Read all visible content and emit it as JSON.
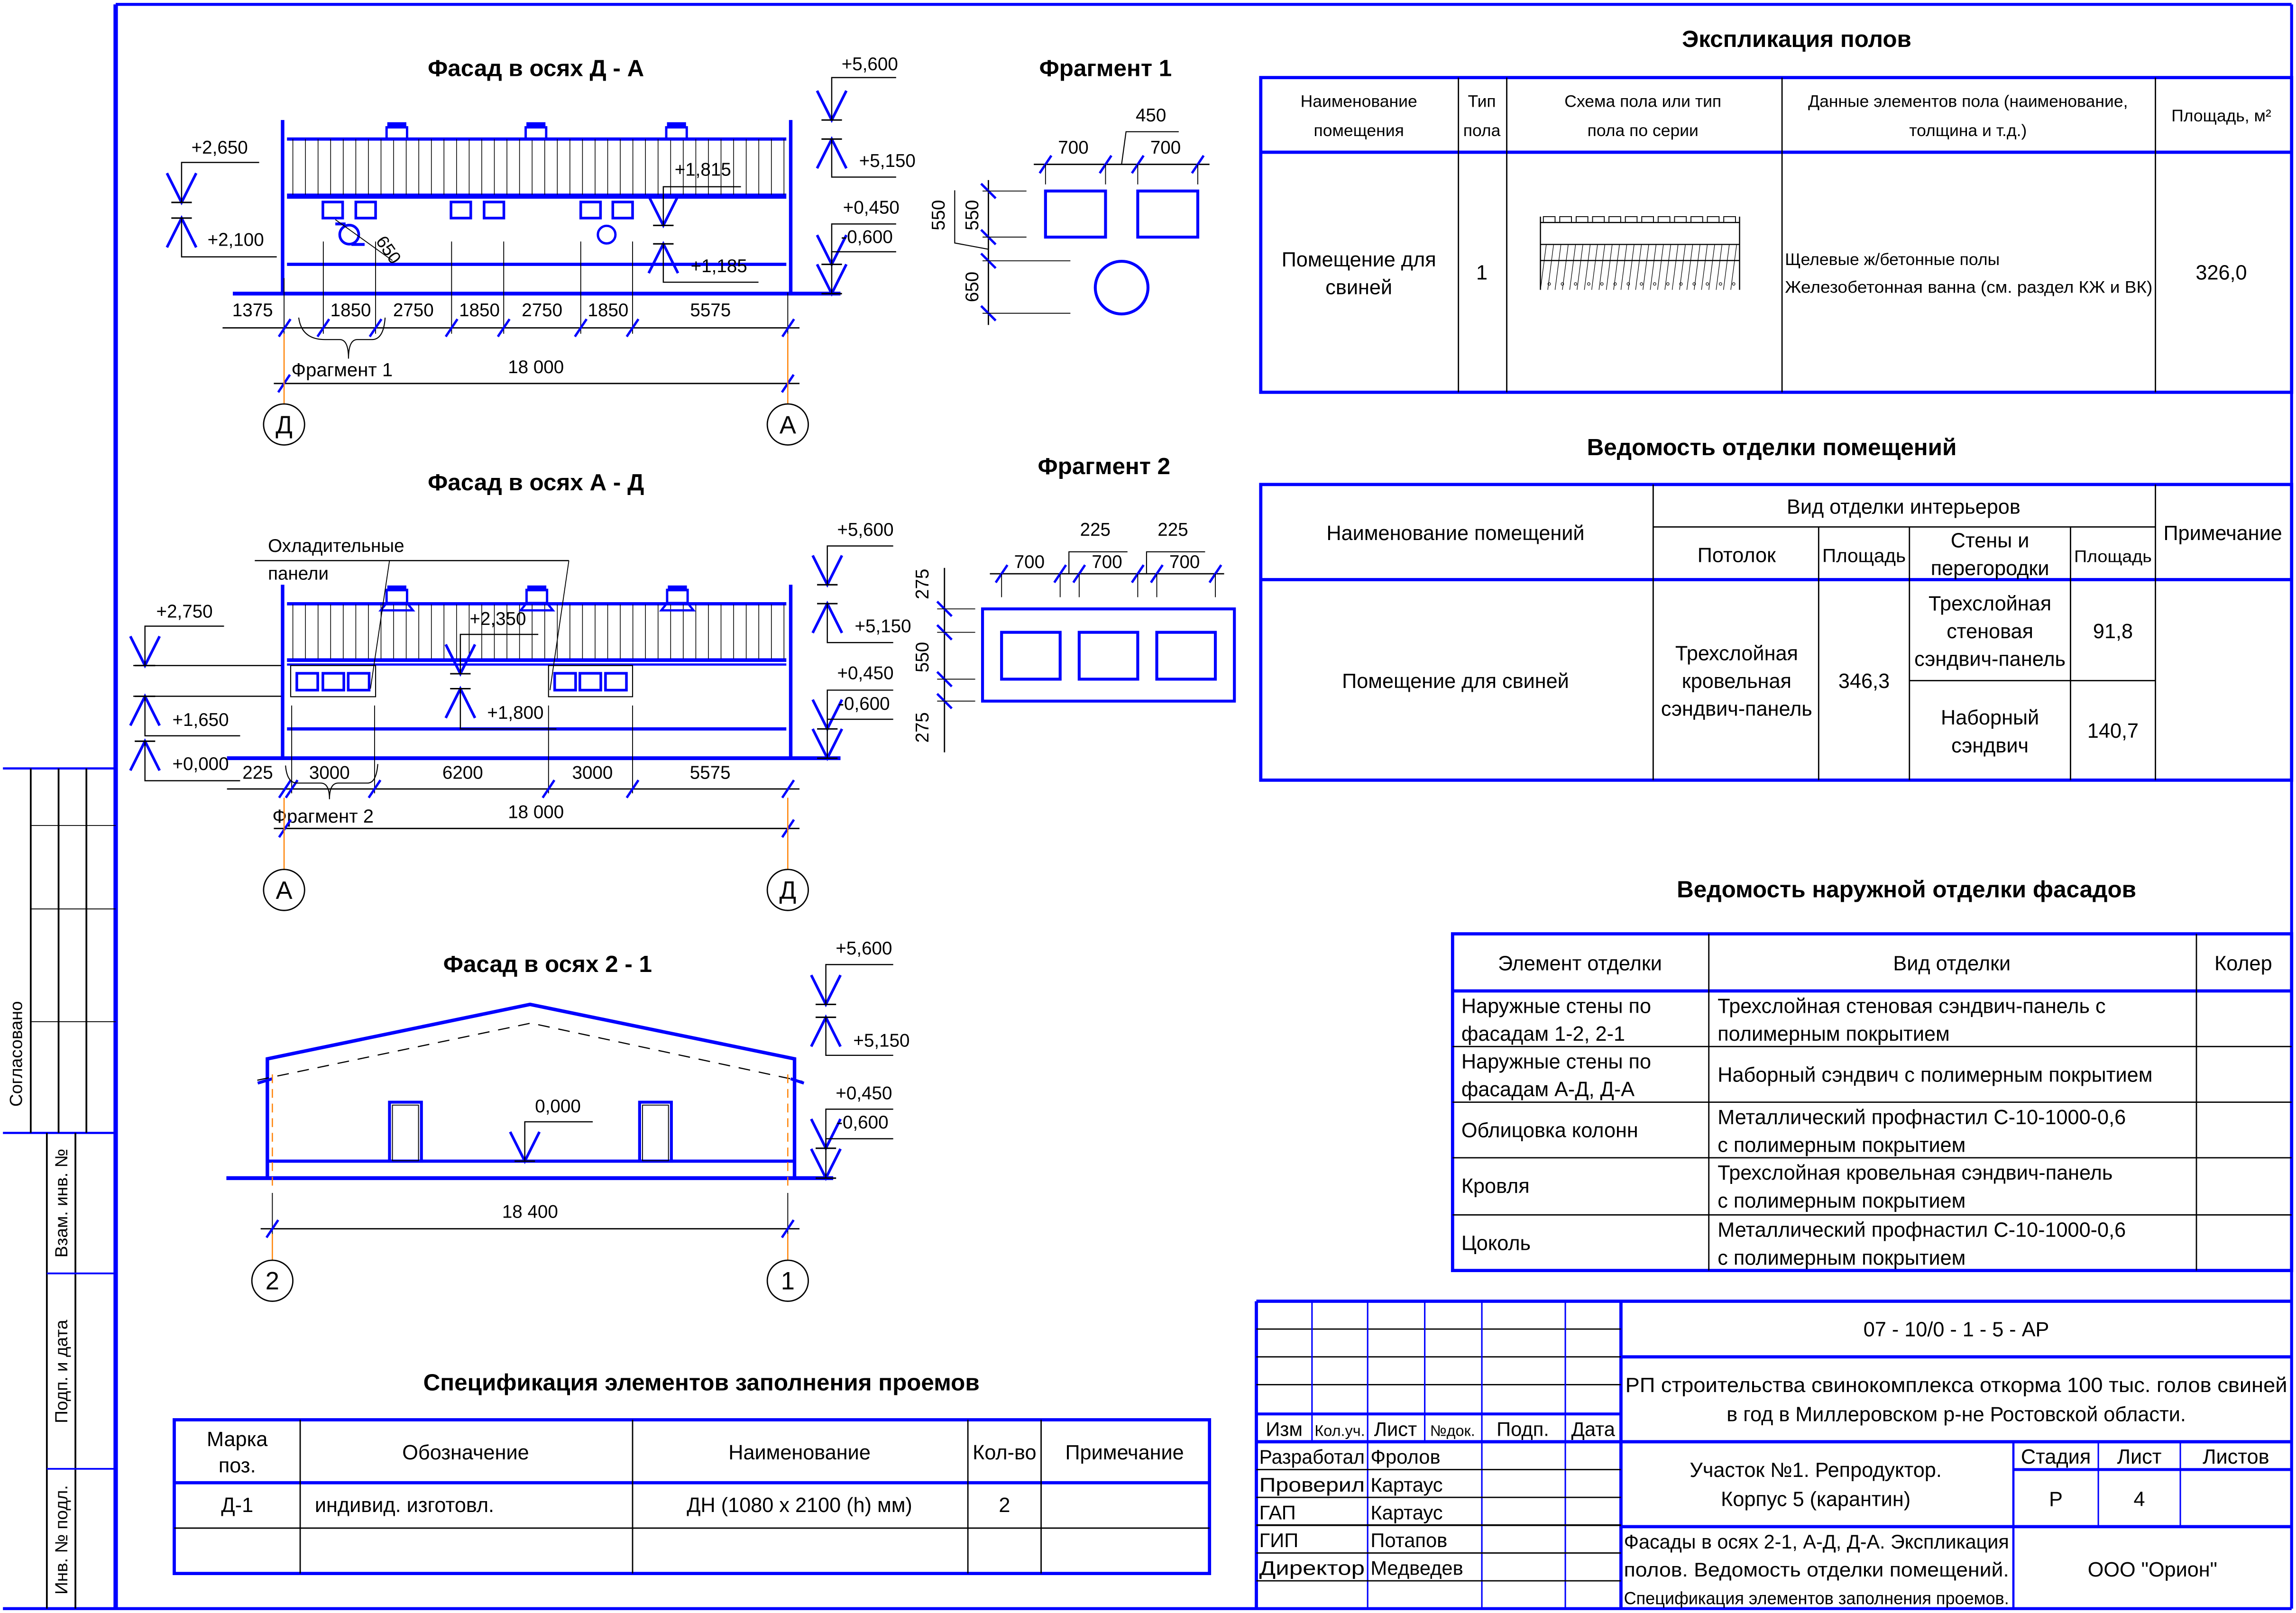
{
  "colors": {
    "line_blue": "#0000ff",
    "line_black": "#000000",
    "axis_orange": "#ff8000"
  },
  "facade_da": {
    "title": "Фасад в осях Д - А",
    "elevations": {
      "e5600": "+5,600",
      "e5150": "+5,150",
      "e0450": "+0,450",
      "em0600": "-0,600",
      "e2650": "+2,650",
      "e2100": "+2,100",
      "e1815": "+1,815",
      "e1185": "+1,185"
    },
    "circle_dim": "650",
    "dims": [
      "1375",
      "1850",
      "2750",
      "1850",
      "2750",
      "1850",
      "5575"
    ],
    "overall": "18 000",
    "fragment_label": "Фрагмент 1",
    "axes": [
      "Д",
      "А"
    ]
  },
  "facade_ad": {
    "title": "Фасад в осях А - Д",
    "callout": [
      "Охладительные",
      "панели"
    ],
    "elevations": {
      "e5600": "+5,600",
      "e5150": "+5,150",
      "e0450": "+0,450",
      "em0600": "-0,600",
      "e2750": "+2,750",
      "e1650": "+1,650",
      "e0000": "+0,000",
      "e2350": "+2,350",
      "e1800": "+1,800"
    },
    "dims": [
      "225",
      "3000",
      "6200",
      "3000",
      "5575"
    ],
    "overall": "18 000",
    "fragment_label": "Фрагмент 2",
    "axes": [
      "А",
      "Д"
    ]
  },
  "facade_21": {
    "title": "Фасад в осях 2 - 1",
    "elevations": {
      "e5600": "+5,600",
      "e5150": "+5,150",
      "e0450": "+0,450",
      "em0600": "-0,600",
      "e0000": "0,000"
    },
    "overall": "18 400",
    "axes": [
      "2",
      "1"
    ]
  },
  "fragment1": {
    "title": "Фрагмент 1",
    "dims_h": [
      "700",
      "700"
    ],
    "gap": "450",
    "dims_v": [
      "550",
      "550",
      "650"
    ]
  },
  "fragment2": {
    "title": "Фрагмент 2",
    "dims_h": [
      "700",
      "700",
      "700"
    ],
    "gaps": [
      "225",
      "225"
    ],
    "dims_v": [
      "275",
      "550",
      "275"
    ]
  },
  "floors": {
    "title": "Экспликация полов",
    "headers": [
      [
        "Наименование",
        "помещения"
      ],
      [
        "Тип",
        "пола"
      ],
      [
        "Схема пола или тип",
        "пола по серии"
      ],
      [
        "Данные элементов пола (наименование,",
        "толщина и т.д.)"
      ],
      [
        "Площадь, м²"
      ]
    ],
    "rows": [
      {
        "room": [
          "Помещение для",
          "свиней"
        ],
        "type": "1",
        "data": [
          "Щелевые ж/бетонные полы",
          "Железобетонная ванна (см. раздел КЖ и ВК)"
        ],
        "area": "326,0"
      }
    ]
  },
  "interior": {
    "title": "Ведомость отделки помещений",
    "headers": {
      "room": "Наименование помещений",
      "group": "Вид отделки интерьеров",
      "ceiling": "Потолок",
      "area1": "Площадь",
      "walls": [
        "Стены и",
        "перегородки"
      ],
      "area2": "Площадь",
      "note": "Примечание"
    },
    "row": {
      "room": "Помещение для свиней",
      "ceiling": [
        "Трехслойная",
        "кровельная",
        "сэндвич-панель"
      ],
      "ceiling_area": "346,3",
      "walls": [
        {
          "name": [
            "Трехслойная",
            "стеновая",
            "сэндвич-панель"
          ],
          "area": "91,8"
        },
        {
          "name": [
            "Наборный",
            "сэндвич"
          ],
          "area": "140,7"
        }
      ]
    }
  },
  "exterior": {
    "title": "Ведомость наружной отделки фасадов",
    "headers": [
      "Элемент отделки",
      "Вид отделки",
      "Колер"
    ],
    "rows": [
      {
        "element": [
          "Наружные стены по",
          "фасадам 1-2, 2-1"
        ],
        "finish": [
          "Трехслойная стеновая сэндвич-панель с",
          "полимерным покрытием"
        ]
      },
      {
        "element": [
          "Наружные стены по",
          "фасадам А-Д, Д-А"
        ],
        "finish": [
          "Наборный сэндвич с полимерным покрытием"
        ]
      },
      {
        "element": [
          "Облицовка колонн"
        ],
        "finish": [
          "Металлический профнастил С-10-1000-0,6",
          "с полимерным покрытием"
        ]
      },
      {
        "element": [
          "Кровля"
        ],
        "finish": [
          "Трехслойная кровельная сэндвич-панель",
          "с полимерным покрытием"
        ]
      },
      {
        "element": [
          "Цоколь"
        ],
        "finish": [
          "Металлический профнастил С-10-1000-0,6",
          "с полимерным покрытием"
        ]
      }
    ]
  },
  "spec": {
    "title": "Спецификация элементов заполнения проемов",
    "headers": [
      [
        "Марка",
        "поз."
      ],
      [
        "Обозначение"
      ],
      [
        "Наименование"
      ],
      [
        "Кол-во"
      ],
      [
        "Примечание"
      ]
    ],
    "rows": [
      {
        "mark": "Д-1",
        "designation": "индивид. изготовл.",
        "name": "ДН (1080 х 2100 (h) мм)",
        "qty": "2",
        "note": ""
      }
    ]
  },
  "title_block": {
    "code": "07 - 10/0 - 1 - 5 - АР",
    "project": [
      "РП строительства свинокомплекса откорма 100 тыс. голов свиней",
      "в год в Миллеровском р-не Ростовской области."
    ],
    "col_headers": [
      "Изм",
      "Кол.уч.",
      "Лист",
      "№док.",
      "Подп.",
      "Дата"
    ],
    "signers": [
      {
        "role": "Разработал",
        "name": "Фролов"
      },
      {
        "role": "Проверил",
        "name": "Картаус"
      },
      {
        "role": "ГАП",
        "name": "Картаус"
      },
      {
        "role": "ГИП",
        "name": "Потапов"
      },
      {
        "role": "Директор",
        "name": "Медведев"
      }
    ],
    "object": [
      "Участок №1. Репродуктор.",
      "Корпус 5 (карантин)"
    ],
    "stage_label": "Стадия",
    "sheet_label": "Лист",
    "sheets_label": "Листов",
    "stage": "Р",
    "sheet": "4",
    "sheets": "",
    "description": [
      "Фасады в осях 2-1, А-Д, Д-А. Экспликация",
      "полов. Ведомость отделки помещений.",
      "Спецификация элементов заполнения проемов."
    ],
    "company": "ООО \"Орион\""
  },
  "side_stamp": {
    "agreed": "Согласовано",
    "replaced_inv": "Взам. инв. №",
    "sign_date": "Подп. и дата",
    "inv_orig": "Инв. № подл."
  }
}
